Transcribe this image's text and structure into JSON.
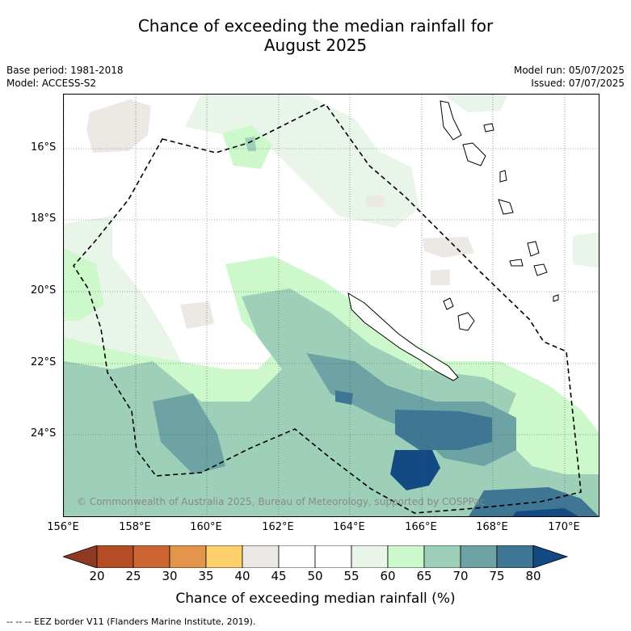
{
  "title_line1": "Chance of exceeding the median rainfall for",
  "title_line2": "August 2025",
  "base_period": "Base period: 1981-2018",
  "model": "Model: ACCESS-S2",
  "model_run": "Model run: 05/07/2025",
  "issued": "Issued: 07/07/2025",
  "lat_labels": [
    "16°S",
    "18°S",
    "20°S",
    "22°S",
    "24°S"
  ],
  "lon_labels": [
    "156°E",
    "158°E",
    "160°E",
    "162°E",
    "164°E",
    "166°E",
    "168°E",
    "170°E"
  ],
  "copyright": "© Commonwealth of Australia 2025, Bureau of Meteorology, supported by COSPPac",
  "colorbar": {
    "ticks": [
      "20",
      "25",
      "30",
      "35",
      "40",
      "45",
      "50",
      "55",
      "60",
      "65",
      "70",
      "75",
      "80"
    ],
    "label": "Chance of exceeding median rainfall (%)",
    "colors": [
      "#8e3a22",
      "#b44d25",
      "#cd6633",
      "#e3964b",
      "#fdd06c",
      "#ece9e4",
      "#ffffff",
      "#ffffff",
      "#eaf5ea",
      "#ccf8cb",
      "#9dcfb9",
      "#6ea3a6",
      "#3f7694",
      "#134a84"
    ]
  },
  "footer": "-- -- -- EEZ border V11 (Flanders Marine Institute, 2019)."
}
